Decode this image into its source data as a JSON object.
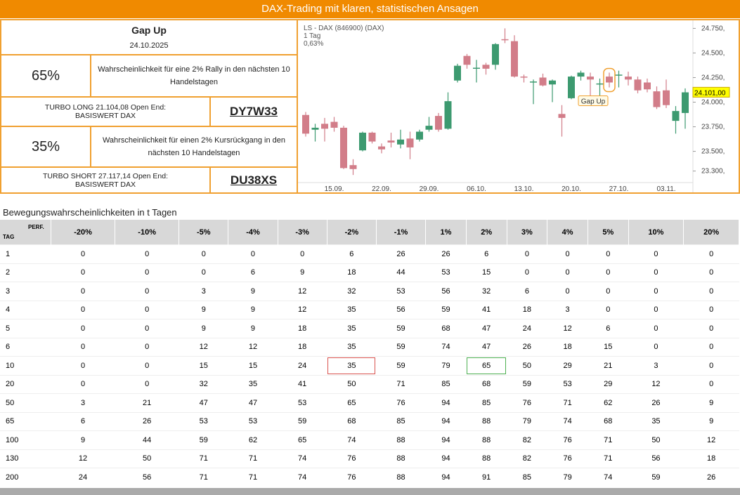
{
  "header": {
    "title": "DAX-Trading mit klaren, statistischen Ansagen"
  },
  "signal": {
    "title": "Gap Up",
    "date": "24.10.2025",
    "long": {
      "probability": "65%",
      "text": "Wahrscheinlichkeit für eine 2% Rally in den nächsten 10 Handelstagen",
      "product": "TURBO LONG 21.104,08 Open End:",
      "underlying": "BASISWERT DAX",
      "wkn": "DY7W33"
    },
    "short": {
      "probability": "35%",
      "text": "Wahrscheinlichkeit für einen 2% Kursrückgang in den nächsten 10 Handelstagen",
      "product": "TURBO SHORT 27.117,14 Open End:",
      "underlying": "BASISWERT DAX",
      "wkn": "DU38XS"
    }
  },
  "chart_data": {
    "type": "candlestick",
    "title": "LS - DAX (846900) (DAX)",
    "subtitle": "1 Tag",
    "change": "0,63%",
    "categories": [
      null,
      null,
      null,
      "15.09.",
      null,
      null,
      null,
      null,
      "22.09.",
      null,
      null,
      null,
      null,
      "29.09.",
      null,
      null,
      null,
      null,
      "06.10.",
      null,
      null,
      null,
      null,
      "13.10.",
      null,
      null,
      null,
      null,
      "20.10.",
      null,
      null,
      null,
      null,
      "27.10.",
      null,
      null,
      null,
      null,
      "03.11.",
      null,
      null
    ],
    "open": [
      23870,
      23720,
      23780,
      23800,
      23740,
      23360,
      23510,
      23690,
      23550,
      23610,
      23570,
      23630,
      23620,
      23720,
      23860,
      23730,
      24220,
      24470,
      24340,
      24380,
      24380,
      24640,
      24620,
      24260,
      24200,
      24250,
      24180,
      23880,
      24040,
      24260,
      24260,
      24180,
      24260,
      24270,
      24260,
      24230,
      24200,
      24110,
      24120,
      23810,
      23890
    ],
    "high": [
      23900,
      23780,
      23840,
      23850,
      23760,
      23420,
      23700,
      23700,
      23580,
      23690,
      23720,
      23700,
      23720,
      23850,
      23890,
      24100,
      24390,
      24490,
      24430,
      24400,
      24600,
      24750,
      24680,
      24280,
      24230,
      24290,
      24230,
      23970,
      24270,
      24320,
      24300,
      24240,
      24300,
      24320,
      24310,
      24260,
      24240,
      24160,
      24230,
      23960,
      24140
    ],
    "low": [
      23650,
      23600,
      23600,
      23700,
      23320,
      23260,
      23500,
      23580,
      23480,
      23540,
      23530,
      23420,
      23600,
      23700,
      23700,
      23720,
      24200,
      24340,
      24200,
      24280,
      24330,
      24600,
      24250,
      24200,
      23980,
      24160,
      24000,
      23650,
      24030,
      24220,
      24060,
      24040,
      24150,
      24150,
      24170,
      24090,
      24100,
      23930,
      23940,
      23680,
      23730
    ],
    "close": [
      23680,
      23740,
      23730,
      23740,
      23330,
      23320,
      23690,
      23600,
      23520,
      23590,
      23620,
      23540,
      23700,
      23760,
      23720,
      24010,
      24370,
      24380,
      24350,
      24340,
      24590,
      24630,
      24260,
      24250,
      24210,
      24170,
      24220,
      23840,
      24260,
      24300,
      24230,
      24190,
      24200,
      24280,
      24230,
      24120,
      24130,
      23950,
      23970,
      23910,
      24100
    ],
    "up_color": "#3d9a70",
    "down_color": "#d27d89",
    "ylim": [
      23240,
      24810
    ],
    "yticks": [
      {
        "value": 24750,
        "label": "24.750,"
      },
      {
        "value": 24500,
        "label": "24.500,"
      },
      {
        "value": 24250,
        "label": "24.250,"
      },
      {
        "value": 24000,
        "label": "24.000,"
      },
      {
        "value": 23750,
        "label": "23.750,"
      },
      {
        "value": 23500,
        "label": "23.500,"
      },
      {
        "value": 23300,
        "label": "23.300,"
      }
    ],
    "last_price": {
      "value": 24101,
      "label": "24.101,00"
    },
    "annotation": {
      "text": "Gap Up",
      "index": 32
    }
  },
  "table": {
    "title": "Bewegungswahrscheinlichkeiten in t Tagen",
    "row_header": "TAG",
    "col_header": "PERF.",
    "columns": [
      "-20%",
      "-10%",
      "-5%",
      "-4%",
      "-3%",
      "-2%",
      "-1%",
      "1%",
      "2%",
      "3%",
      "4%",
      "5%",
      "10%",
      "20%"
    ],
    "rows": [
      [
        "1",
        0,
        0,
        0,
        0,
        0,
        6,
        26,
        26,
        6,
        0,
        0,
        0,
        0,
        0
      ],
      [
        "2",
        0,
        0,
        0,
        6,
        9,
        18,
        44,
        53,
        15,
        0,
        0,
        0,
        0,
        0
      ],
      [
        "3",
        0,
        0,
        3,
        9,
        12,
        32,
        53,
        56,
        32,
        6,
        0,
        0,
        0,
        0
      ],
      [
        "4",
        0,
        0,
        9,
        9,
        12,
        35,
        56,
        59,
        41,
        18,
        3,
        0,
        0,
        0
      ],
      [
        "5",
        0,
        0,
        9,
        9,
        18,
        35,
        59,
        68,
        47,
        24,
        12,
        6,
        0,
        0
      ],
      [
        "6",
        0,
        0,
        12,
        12,
        18,
        35,
        59,
        74,
        47,
        26,
        18,
        15,
        0,
        0
      ],
      [
        "10",
        0,
        0,
        15,
        15,
        24,
        35,
        59,
        79,
        65,
        50,
        29,
        21,
        3,
        0
      ],
      [
        "20",
        0,
        0,
        32,
        35,
        41,
        50,
        71,
        85,
        68,
        59,
        53,
        29,
        12,
        0
      ],
      [
        "50",
        3,
        21,
        47,
        47,
        53,
        65,
        76,
        94,
        85,
        76,
        71,
        62,
        26,
        9
      ],
      [
        "65",
        6,
        26,
        53,
        53,
        59,
        68,
        85,
        94,
        88,
        79,
        74,
        68,
        35,
        9
      ],
      [
        "100",
        9,
        44,
        59,
        62,
        65,
        74,
        88,
        94,
        88,
        82,
        76,
        71,
        50,
        12
      ],
      [
        "130",
        12,
        50,
        71,
        71,
        74,
        76,
        88,
        94,
        88,
        82,
        76,
        71,
        56,
        18
      ],
      [
        "200",
        24,
        56,
        71,
        71,
        74,
        76,
        88,
        94,
        91,
        85,
        79,
        74,
        59,
        26
      ]
    ],
    "highlights": [
      {
        "row": 6,
        "col": 6,
        "color": "#d9534f"
      },
      {
        "row": 6,
        "col": 9,
        "color": "#4caf50"
      }
    ]
  }
}
